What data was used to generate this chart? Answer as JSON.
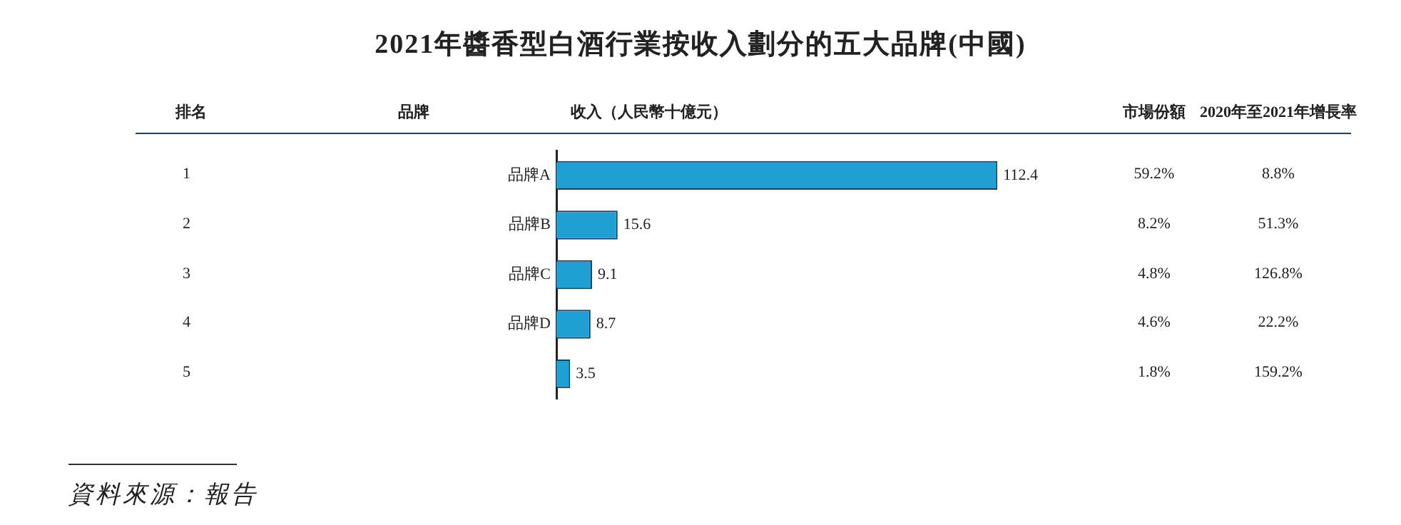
{
  "chart_data": {
    "type": "bar",
    "orientation": "horizontal",
    "title": "2021年醬香型白酒行業按收入劃分的五大品牌(中國)",
    "xlabel": "收入（人民幣十億元）",
    "categories": [
      "品牌A",
      "品牌B",
      "品牌C",
      "品牌D",
      null
    ],
    "values": [
      112.4,
      15.6,
      9.1,
      8.7,
      3.5
    ],
    "color": "#1f9fd2",
    "data_labels": true,
    "legend": false,
    "grid": false,
    "annotations": [
      "排名",
      "品牌",
      "市場份額",
      "2020年至2021年增長率",
      "1",
      "2",
      "3",
      "4",
      "5",
      "59.2%",
      "8.2%",
      "4.8%",
      "4.6%",
      "1.8%",
      "8.8%",
      "51.3%",
      "126.8%",
      "22.2%",
      "159.2%",
      "資料來源：報告"
    ]
  }
}
